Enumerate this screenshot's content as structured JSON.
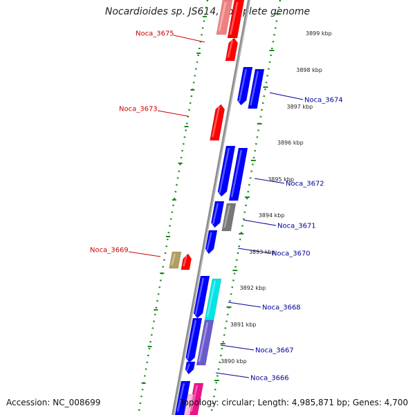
{
  "title": "Nocardioides sp. JS614, complete genome",
  "footer": {
    "accession": "Accession: NC_008699",
    "info": "Topology: circular; Length: 4,985,871 bp; Genes: 4,700"
  },
  "colors": {
    "forward_gene": "#ff0000",
    "reverse_gene": "#0000ff",
    "backbone": "#8c8c8c",
    "marker": "#1a8a1a",
    "label_red": "#cc0000",
    "label_blue": "#000099"
  },
  "ticks": [
    "3899 kbp",
    "3898 kbp",
    "3897 kbp",
    "3896 kbp",
    "3895 kbp",
    "3894 kbp",
    "3893 kbp",
    "3892 kbp",
    "3891 kbp",
    "3890 kbp"
  ],
  "gene_labels": [
    "Noca_3675",
    "Noca_3673",
    "Noca_3669",
    "Noca_3674",
    "Noca_3672",
    "Noca_3671",
    "Noca_3670",
    "Noca_3668",
    "Noca_3667",
    "Noca_3666"
  ]
}
